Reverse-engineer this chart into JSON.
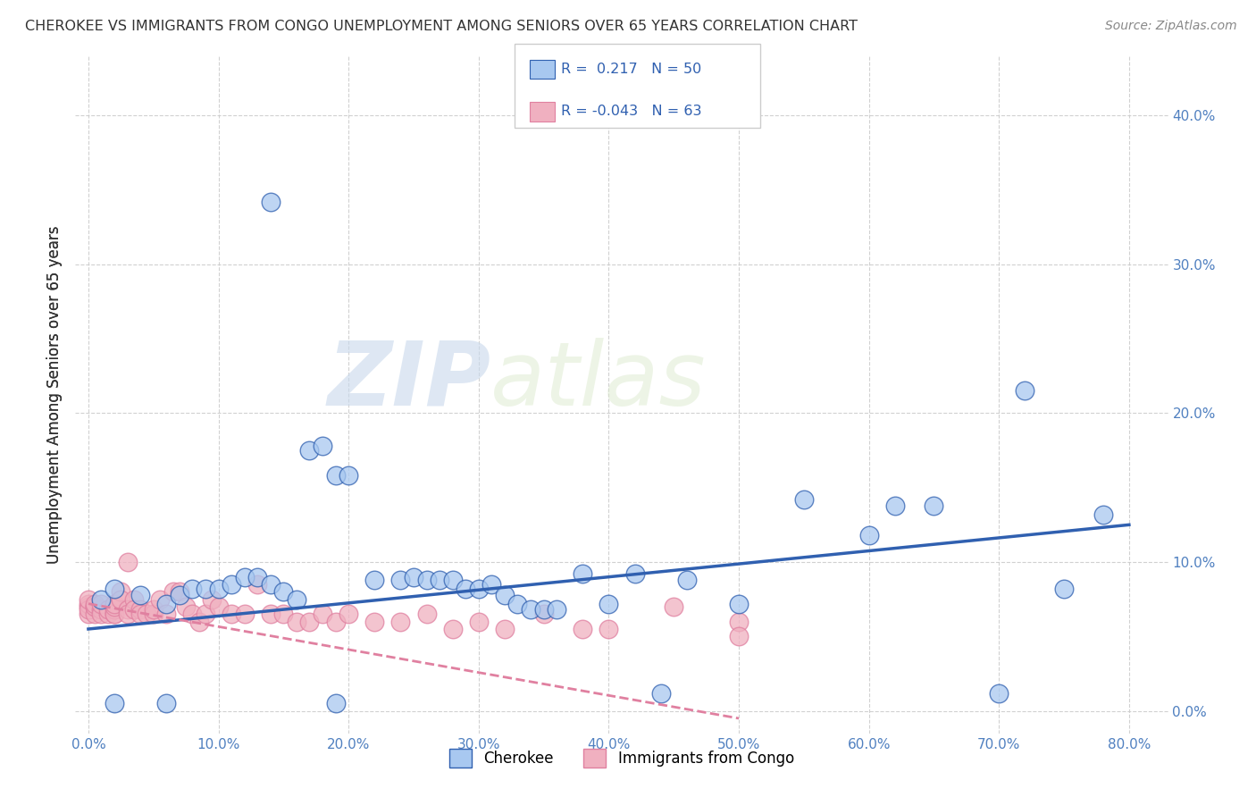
{
  "title": "CHEROKEE VS IMMIGRANTS FROM CONGO UNEMPLOYMENT AMONG SENIORS OVER 65 YEARS CORRELATION CHART",
  "source": "Source: ZipAtlas.com",
  "ylabel": "Unemployment Among Seniors over 65 years",
  "xlabel": "",
  "xlim": [
    -0.01,
    0.83
  ],
  "ylim": [
    -0.015,
    0.44
  ],
  "xticks": [
    0.0,
    0.1,
    0.2,
    0.3,
    0.4,
    0.5,
    0.6,
    0.7,
    0.8
  ],
  "xticklabels": [
    "0.0%",
    "10.0%",
    "20.0%",
    "30.0%",
    "40.0%",
    "50.0%",
    "60.0%",
    "70.0%",
    "80.0%"
  ],
  "yticks": [
    0.0,
    0.1,
    0.2,
    0.3,
    0.4
  ],
  "yticklabels": [
    "0.0%",
    "10.0%",
    "20.0%",
    "30.0%",
    "40.0%"
  ],
  "grid_color": "#cccccc",
  "background_color": "#ffffff",
  "cherokee_color": "#a8c8f0",
  "congo_color": "#f0b0c0",
  "cherokee_R": 0.217,
  "cherokee_N": 50,
  "congo_R": -0.043,
  "congo_N": 63,
  "cherokee_line_color": "#3060b0",
  "congo_line_color": "#e080a0",
  "legend_label_cherokee": "Cherokee",
  "legend_label_congo": "Immigrants from Congo",
  "watermark_zip": "ZIP",
  "watermark_atlas": "atlas",
  "cherokee_x": [
    0.01,
    0.02,
    0.04,
    0.06,
    0.07,
    0.08,
    0.09,
    0.1,
    0.11,
    0.12,
    0.13,
    0.14,
    0.15,
    0.16,
    0.17,
    0.18,
    0.19,
    0.2,
    0.22,
    0.24,
    0.25,
    0.26,
    0.27,
    0.28,
    0.29,
    0.3,
    0.31,
    0.32,
    0.33,
    0.34,
    0.35,
    0.36,
    0.38,
    0.4,
    0.42,
    0.44,
    0.46,
    0.5,
    0.55,
    0.6,
    0.62,
    0.65,
    0.7,
    0.72,
    0.75,
    0.78,
    0.14,
    0.06,
    0.19,
    0.02
  ],
  "cherokee_y": [
    0.075,
    0.082,
    0.078,
    0.072,
    0.078,
    0.082,
    0.082,
    0.082,
    0.085,
    0.09,
    0.09,
    0.085,
    0.08,
    0.075,
    0.175,
    0.178,
    0.158,
    0.158,
    0.088,
    0.088,
    0.09,
    0.088,
    0.088,
    0.088,
    0.082,
    0.082,
    0.085,
    0.078,
    0.072,
    0.068,
    0.068,
    0.068,
    0.092,
    0.072,
    0.092,
    0.012,
    0.088,
    0.072,
    0.142,
    0.118,
    0.138,
    0.138,
    0.012,
    0.215,
    0.082,
    0.132,
    0.342,
    0.005,
    0.005,
    0.005
  ],
  "congo_x": [
    0.0,
    0.0,
    0.0,
    0.0,
    0.0,
    0.005,
    0.005,
    0.005,
    0.005,
    0.01,
    0.01,
    0.01,
    0.015,
    0.015,
    0.02,
    0.02,
    0.02,
    0.02,
    0.02,
    0.025,
    0.025,
    0.03,
    0.03,
    0.03,
    0.035,
    0.035,
    0.04,
    0.04,
    0.045,
    0.05,
    0.05,
    0.055,
    0.06,
    0.065,
    0.07,
    0.075,
    0.08,
    0.085,
    0.09,
    0.095,
    0.1,
    0.11,
    0.12,
    0.13,
    0.14,
    0.15,
    0.16,
    0.17,
    0.18,
    0.19,
    0.2,
    0.22,
    0.24,
    0.26,
    0.28,
    0.3,
    0.32,
    0.35,
    0.38,
    0.4,
    0.45,
    0.5,
    0.5
  ],
  "congo_y": [
    0.07,
    0.065,
    0.072,
    0.068,
    0.075,
    0.07,
    0.065,
    0.07,
    0.072,
    0.068,
    0.065,
    0.072,
    0.065,
    0.068,
    0.065,
    0.068,
    0.065,
    0.07,
    0.072,
    0.08,
    0.075,
    0.1,
    0.068,
    0.065,
    0.075,
    0.068,
    0.068,
    0.065,
    0.065,
    0.065,
    0.068,
    0.075,
    0.065,
    0.08,
    0.08,
    0.07,
    0.065,
    0.06,
    0.065,
    0.075,
    0.07,
    0.065,
    0.065,
    0.085,
    0.065,
    0.065,
    0.06,
    0.06,
    0.065,
    0.06,
    0.065,
    0.06,
    0.06,
    0.065,
    0.055,
    0.06,
    0.055,
    0.065,
    0.055,
    0.055,
    0.07,
    0.06,
    0.05
  ],
  "cherokee_trend_x0": 0.0,
  "cherokee_trend_x1": 0.8,
  "cherokee_trend_y0": 0.055,
  "cherokee_trend_y1": 0.125,
  "congo_trend_x0": 0.0,
  "congo_trend_x1": 0.5,
  "congo_trend_y0": 0.072,
  "congo_trend_y1": -0.005
}
